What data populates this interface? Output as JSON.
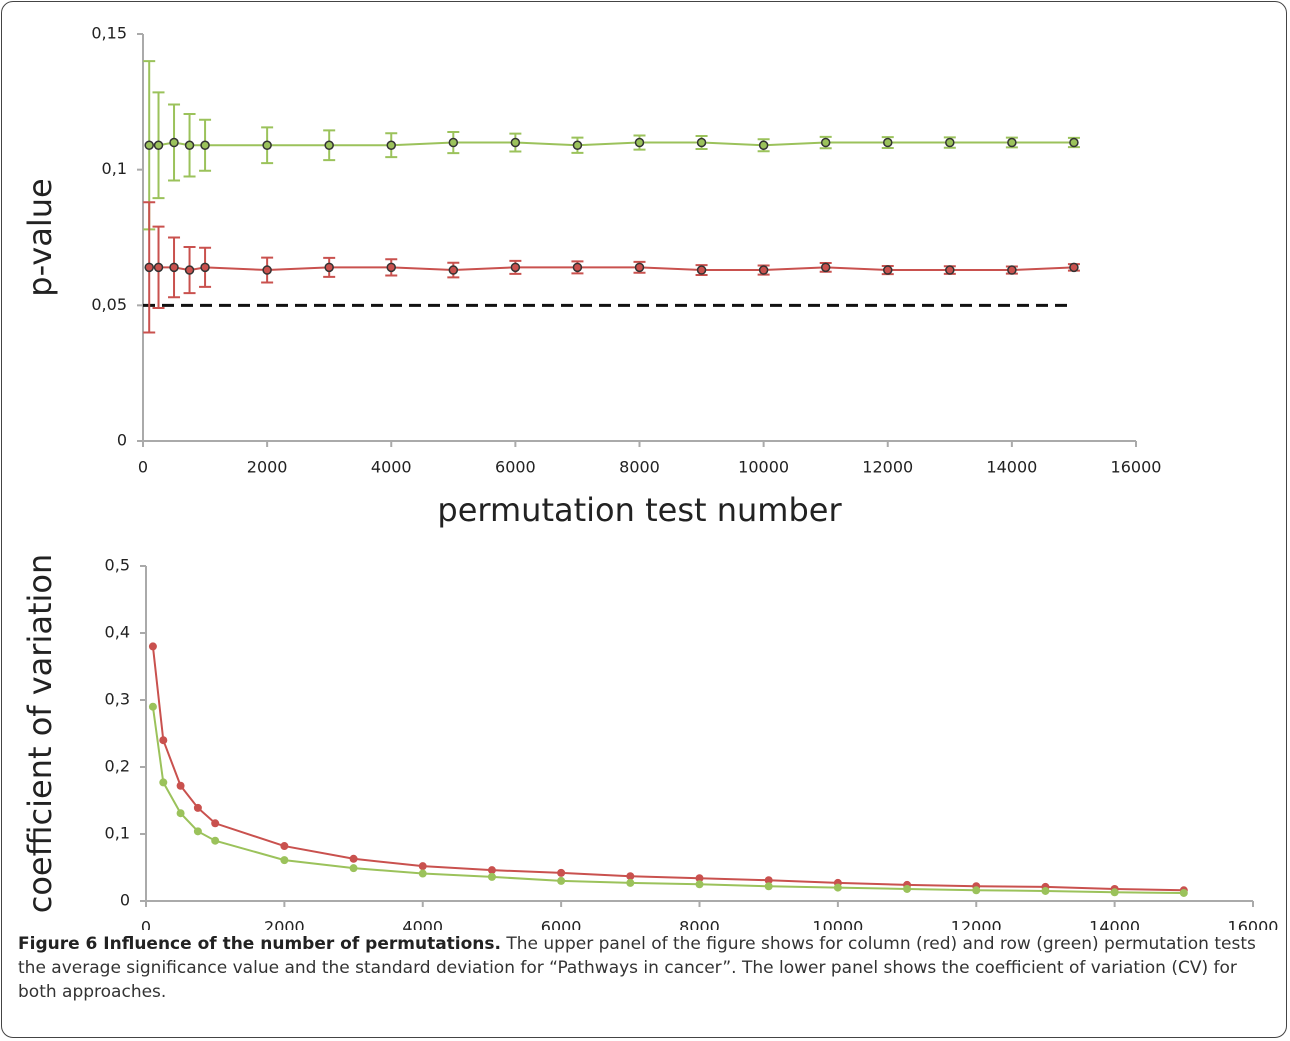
{
  "chart_data": [
    {
      "type": "line",
      "y_label": "p-value",
      "x_label": "permutation test number",
      "x": [
        100,
        250,
        500,
        750,
        1000,
        2000,
        3000,
        4000,
        5000,
        6000,
        7000,
        8000,
        9000,
        10000,
        11000,
        12000,
        13000,
        14000,
        15000
      ],
      "series": [
        {
          "color": "#9bc25b",
          "values": [
            0.109,
            0.109,
            0.11,
            0.109,
            0.109,
            0.109,
            0.109,
            0.109,
            0.11,
            0.11,
            0.109,
            0.11,
            0.11,
            0.109,
            0.11,
            0.11,
            0.11,
            0.11,
            0.11
          ],
          "errors": [
            0.031,
            0.0195,
            0.014,
            0.0115,
            0.0094,
            0.0066,
            0.0055,
            0.0044,
            0.0039,
            0.0033,
            0.0028,
            0.0026,
            0.0024,
            0.0022,
            0.0021,
            0.002,
            0.0019,
            0.0018,
            0.0017
          ]
        },
        {
          "color": "#c9514e",
          "values": [
            0.064,
            0.064,
            0.064,
            0.063,
            0.064,
            0.063,
            0.064,
            0.064,
            0.063,
            0.064,
            0.064,
            0.064,
            0.063,
            0.063,
            0.064,
            0.063,
            0.063,
            0.063,
            0.064
          ],
          "errors": [
            0.024,
            0.015,
            0.011,
            0.0085,
            0.0072,
            0.0046,
            0.0035,
            0.003,
            0.0027,
            0.0024,
            0.0022,
            0.002,
            0.0018,
            0.0017,
            0.0016,
            0.0015,
            0.0014,
            0.0013,
            0.0012
          ]
        }
      ],
      "reference_line": {
        "y": 0.05,
        "x": [
          0,
          15000
        ]
      },
      "xlim": [
        0,
        16000
      ],
      "xticks": [
        0,
        2000,
        4000,
        6000,
        8000,
        10000,
        12000,
        14000,
        16000
      ],
      "ylim": [
        0,
        0.15
      ],
      "yticks": [
        0,
        {
          "value": 0.05,
          "label": "0,05"
        },
        {
          "value": 0.1,
          "label": "0,1"
        },
        {
          "value": 0.15,
          "label": "0,15"
        }
      ]
    },
    {
      "type": "line",
      "y_label": "coefficient of variation",
      "x": [
        100,
        250,
        500,
        750,
        1000,
        2000,
        3000,
        4000,
        5000,
        6000,
        7000,
        8000,
        9000,
        10000,
        11000,
        12000,
        13000,
        14000,
        15000
      ],
      "series": [
        {
          "color": "#c9514e",
          "values": [
            0.38,
            0.24,
            0.172,
            0.139,
            0.116,
            0.082,
            0.063,
            0.052,
            0.046,
            0.042,
            0.037,
            0.034,
            0.031,
            0.027,
            0.024,
            0.022,
            0.021,
            0.018,
            0.016
          ]
        },
        {
          "color": "#9bc25b",
          "values": [
            0.29,
            0.177,
            0.131,
            0.104,
            0.09,
            0.061,
            0.049,
            0.041,
            0.036,
            0.03,
            0.027,
            0.025,
            0.022,
            0.02,
            0.018,
            0.016,
            0.015,
            0.013,
            0.012
          ]
        }
      ],
      "xlim": [
        0,
        16000
      ],
      "xticks": [
        0,
        2000,
        4000,
        6000,
        8000,
        10000,
        12000,
        14000,
        16000
      ],
      "ylim": [
        0,
        0.5
      ],
      "yticks": [
        0,
        {
          "value": 0.1,
          "label": "0,1"
        },
        {
          "value": 0.2,
          "label": "0,2"
        },
        {
          "value": 0.3,
          "label": "0,3"
        },
        {
          "value": 0.4,
          "label": "0,4"
        },
        {
          "value": 0.5,
          "label": "0,5"
        }
      ]
    }
  ],
  "caption": {
    "title": "Figure 6 Influence of the number of permutations.",
    "text": "The upper panel of the figure shows for column (red) and row (green) permutation tests the average significance value and the standard deviation for “Pathways in cancer”. The lower panel shows the coefficient of variation (CV) for both approaches."
  }
}
